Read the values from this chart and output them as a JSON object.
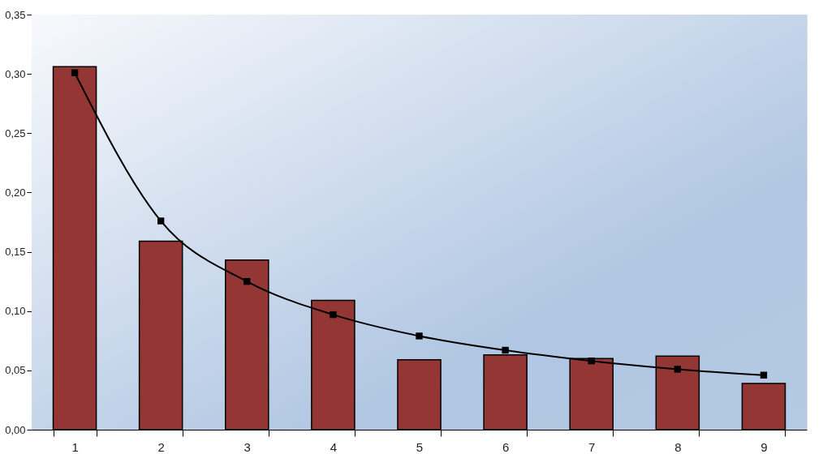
{
  "chart_data": {
    "type": "bar",
    "categories": [
      "1",
      "2",
      "3",
      "4",
      "5",
      "6",
      "7",
      "8",
      "9"
    ],
    "series": [
      {
        "color": "#943634",
        "values": [
          0.306,
          0.159,
          0.143,
          0.109,
          0.059,
          0.063,
          0.06,
          0.062,
          0.039
        ]
      },
      {
        "type": "line",
        "color": "#000000",
        "values": [
          0.301,
          0.176,
          0.125,
          0.097,
          0.079,
          0.067,
          0.058,
          0.051,
          0.046
        ]
      }
    ],
    "ylim": [
      0,
      0.35
    ],
    "yticks": [
      {
        "value": 0,
        "label": "0,00"
      },
      {
        "value": 0.05,
        "label": "0,05"
      },
      {
        "value": 0.1,
        "label": "0,10"
      },
      {
        "value": 0.15,
        "label": "0,15"
      },
      {
        "value": 0.2,
        "label": "0,20"
      },
      {
        "value": 0.25,
        "label": "0,25"
      },
      {
        "value": 0.3,
        "label": "0,30"
      },
      {
        "value": 0.35,
        "label": "0,35"
      }
    ],
    "marker": "square"
  }
}
